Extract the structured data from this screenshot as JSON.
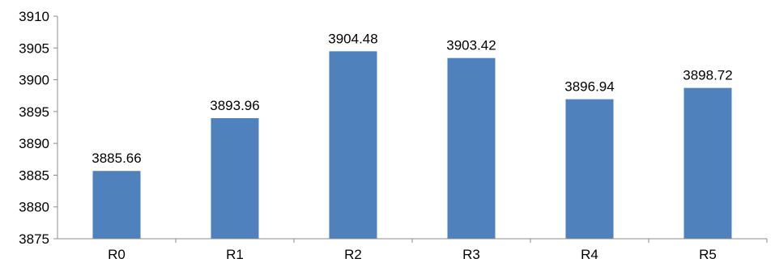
{
  "chart_data": {
    "type": "bar",
    "categories": [
      "R0",
      "R1",
      "R2",
      "R3",
      "R4",
      "R5"
    ],
    "values": [
      3885.66,
      3893.96,
      3904.48,
      3903.42,
      3896.94,
      3898.72
    ],
    "data_labels": [
      "3885.66",
      "3893.96",
      "3904.48",
      "3903.42",
      "3896.94",
      "3898.72"
    ],
    "title": "",
    "xlabel": "",
    "ylabel": "",
    "ylim": [
      3875,
      3910
    ],
    "yticks": [
      3875,
      3880,
      3885,
      3890,
      3895,
      3900,
      3905,
      3910
    ],
    "ytick_labels": [
      "3875",
      "3880",
      "3885",
      "3890",
      "3895",
      "3900",
      "3905",
      "3910"
    ],
    "grid": false,
    "legend": "none",
    "bar_color": "#4f81bd",
    "axis_color": "#8c8c8c"
  }
}
